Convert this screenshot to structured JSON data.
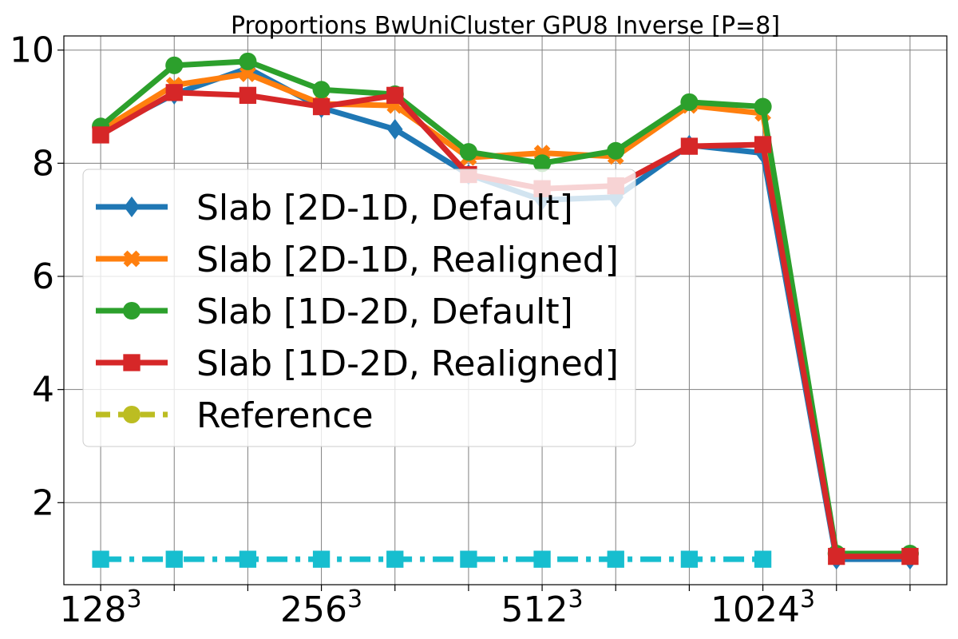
{
  "chart_data": {
    "type": "line",
    "title": "Proportions BwUniCluster GPU8 Inverse [P=8]",
    "xlabel": "",
    "ylabel": "",
    "x_index": [
      0,
      1,
      2,
      3,
      4,
      5,
      6,
      7,
      8,
      9,
      10,
      11
    ],
    "xlim": [
      -0.5,
      11.5
    ],
    "ylim": [
      0.55,
      10.25
    ],
    "x_major_ticks": [
      {
        "index": 0,
        "base": "128",
        "exp": "3"
      },
      {
        "index": 3,
        "base": "256",
        "exp": "3"
      },
      {
        "index": 6,
        "base": "512",
        "exp": "3"
      },
      {
        "index": 9,
        "base": "1024",
        "exp": "3"
      }
    ],
    "x_minor_tick_indices": [
      1,
      2,
      4,
      5,
      7,
      8,
      10,
      11
    ],
    "y_ticks": [
      2,
      4,
      6,
      8,
      10
    ],
    "grid": true,
    "legend_position": "center-left",
    "series": [
      {
        "name": "Slab [2D-1D, Default]",
        "color": "#1f77b4",
        "marker": "diamond",
        "dash": "solid",
        "values": [
          8.55,
          9.22,
          9.68,
          8.98,
          8.6,
          7.8,
          7.35,
          7.4,
          8.32,
          8.18,
          1.0,
          1.0
        ]
      },
      {
        "name": "Slab [2D-1D, Realigned]",
        "color": "#ff7f0e",
        "marker": "x",
        "dash": "solid",
        "values": [
          8.58,
          9.38,
          9.58,
          9.05,
          9.02,
          8.1,
          8.18,
          8.12,
          9.02,
          8.88,
          1.05,
          1.05
        ]
      },
      {
        "name": "Slab [1D-2D, Default]",
        "color": "#2ca02c",
        "marker": "circle",
        "dash": "solid",
        "values": [
          8.65,
          9.73,
          9.8,
          9.3,
          9.22,
          8.2,
          8.0,
          8.22,
          9.08,
          9.0,
          1.1,
          1.1
        ]
      },
      {
        "name": "Slab [1D-2D, Realigned]",
        "color": "#d62728",
        "marker": "square",
        "dash": "solid",
        "values": [
          8.5,
          9.25,
          9.2,
          9.0,
          9.2,
          7.8,
          7.55,
          7.6,
          8.3,
          8.33,
          1.05,
          1.05
        ]
      },
      {
        "name": "Reference",
        "color": "#bcbd22",
        "marker": "circle",
        "dash": "dashed",
        "values": null
      },
      {
        "name": "",
        "color": "#17becf",
        "marker": "square",
        "dash": "dashdot",
        "values": [
          1.0,
          1.0,
          1.0,
          1.0,
          1.0,
          1.0,
          1.0,
          1.0,
          1.0,
          1.0,
          null,
          null
        ]
      }
    ]
  }
}
